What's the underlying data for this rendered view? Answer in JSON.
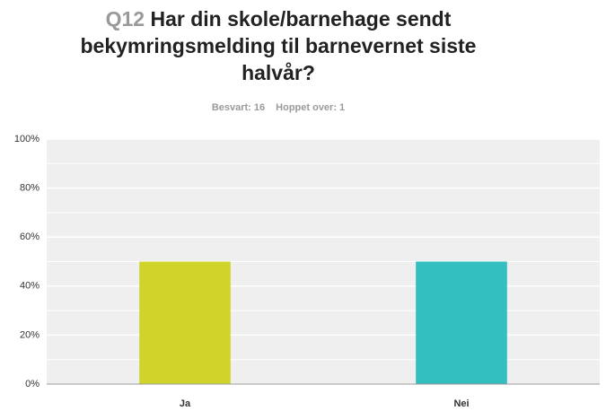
{
  "chart_data": {
    "type": "bar",
    "question_number": "Q12",
    "title": "Har din skole/barnehage sendt bekymringsmelding til barnevernet siste halvår?",
    "answered": "Besvart: 16",
    "skipped": "Hoppet over: 1",
    "categories": [
      "Ja",
      "Nei"
    ],
    "values": [
      50,
      50
    ],
    "colors": [
      "#d0d42a",
      "#33bfc0"
    ],
    "ylim": [
      0,
      100
    ],
    "yticks": [
      {
        "value": 0,
        "label": "0%"
      },
      {
        "value": 20,
        "label": "20%"
      },
      {
        "value": 40,
        "label": "40%"
      },
      {
        "value": 60,
        "label": "60%"
      },
      {
        "value": 80,
        "label": "80%"
      },
      {
        "value": 100,
        "label": "100%"
      }
    ],
    "minor_yticks": [
      10,
      30,
      50,
      70,
      90
    ],
    "grid": true
  }
}
